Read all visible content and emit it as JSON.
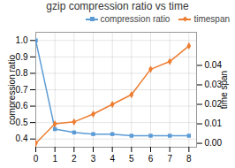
{
  "chart_data": {
    "type": "line",
    "title": "gzip compression ratio vs time",
    "x": [
      0,
      1,
      2,
      3,
      4,
      5,
      6,
      7,
      8
    ],
    "series": [
      {
        "name": "compression ratio",
        "color": "#5b9bd5",
        "marker": "square",
        "axis": "y",
        "values": [
          1.0,
          0.46,
          0.44,
          0.43,
          0.43,
          0.42,
          0.42,
          0.42,
          0.42
        ]
      },
      {
        "name": "timespan",
        "color": "#ed7d31",
        "marker": "diamond",
        "axis": "y2",
        "values": [
          0.0,
          0.01,
          0.011,
          0.015,
          0.02,
          0.025,
          0.038,
          0.042,
          0.05
        ]
      }
    ],
    "ylabel": "compression ratio",
    "y2label": "time span",
    "xlim": [
      0,
      8.4
    ],
    "xticks": [
      0,
      1,
      2,
      3,
      4,
      5,
      6,
      7,
      8
    ],
    "ylim": [
      0.35,
      1.05
    ],
    "yticks": [
      0.4,
      0.5,
      0.6,
      0.7,
      0.8,
      0.9,
      {
        "value": 1.0,
        "label": "1.0"
      }
    ],
    "y2lim": [
      -0.002,
      0.057
    ],
    "y2ticks": [
      {
        "value": 0.0,
        "label": "0.00"
      },
      {
        "value": 0.01,
        "label": "0.01"
      },
      {
        "value": 0.02,
        "label": "0.02"
      },
      {
        "value": 0.03,
        "label": "0.03"
      },
      {
        "value": 0.04,
        "label": "0.04"
      }
    ],
    "grid": true,
    "legend": "upper right"
  }
}
